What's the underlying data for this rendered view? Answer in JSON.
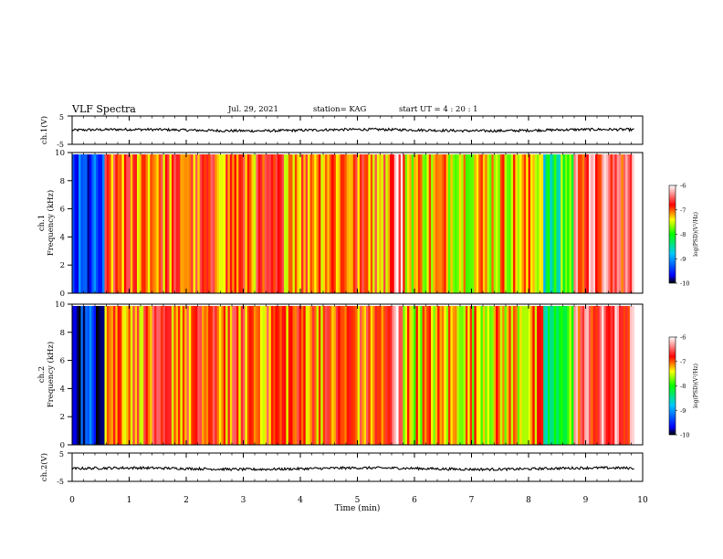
{
  "header": {
    "title": "VLF Spectra",
    "date": "Jul. 29, 2021",
    "station": "station= KAG",
    "start": "start UT =  4 : 20 : 1"
  },
  "chart_data": [
    {
      "id": "waveform_ch1",
      "type": "line",
      "ylabel": "ch.1(V)",
      "yticks": [
        "5",
        "-5"
      ],
      "ylim": [
        -5,
        5
      ],
      "xlim": [
        0,
        10
      ],
      "trace_level_v": 0
    },
    {
      "id": "spectrogram_ch1",
      "type": "heatmap",
      "ylabel": "ch.1\nFrequency (kHz)",
      "ytick_labels": [
        "0",
        "2",
        "4",
        "6",
        "8",
        "10"
      ],
      "ylim": [
        0,
        10
      ],
      "xlim": [
        0,
        10
      ],
      "colorbar": {
        "label": "log(PSD)(V²/Hz)",
        "tick_labels": [
          "-6",
          "-7",
          "-8",
          "-9",
          "-10"
        ],
        "range": [
          -10,
          -6
        ]
      },
      "segments_min": [
        {
          "t0": 0.0,
          "t1": 0.55,
          "psd_log": -9.5
        },
        {
          "t0": 0.55,
          "t1": 5.6,
          "psd_log": -7.0
        },
        {
          "t0": 5.6,
          "t1": 5.8,
          "psd_log": -6.3
        },
        {
          "t0": 5.8,
          "t1": 8.25,
          "psd_log": -7.3
        },
        {
          "t0": 8.25,
          "t1": 8.55,
          "psd_log": -8.4
        },
        {
          "t0": 8.55,
          "t1": 8.8,
          "psd_log": -7.8
        },
        {
          "t0": 8.8,
          "t1": 9.85,
          "psd_log": -6.6
        }
      ]
    },
    {
      "id": "spectrogram_ch2",
      "type": "heatmap",
      "ylabel": "ch.2\nFrequency (kHz)",
      "ytick_labels": [
        "0",
        "2",
        "4",
        "6",
        "8",
        "10"
      ],
      "ylim": [
        0,
        10
      ],
      "xlim": [
        0,
        10
      ],
      "colorbar": {
        "label": "log(PSD)(V²/Hz)",
        "tick_labels": [
          "-6",
          "-7",
          "-8",
          "-9",
          "-10"
        ],
        "range": [
          -10,
          -6
        ]
      },
      "segments_min": [
        {
          "t0": 0.0,
          "t1": 0.55,
          "psd_log": -9.5
        },
        {
          "t0": 0.55,
          "t1": 5.6,
          "psd_log": -7.0
        },
        {
          "t0": 5.6,
          "t1": 5.8,
          "psd_log": -6.3
        },
        {
          "t0": 5.8,
          "t1": 8.25,
          "psd_log": -7.3
        },
        {
          "t0": 8.25,
          "t1": 8.55,
          "psd_log": -8.4
        },
        {
          "t0": 8.55,
          "t1": 8.8,
          "psd_log": -7.8
        },
        {
          "t0": 8.8,
          "t1": 9.85,
          "psd_log": -6.6
        }
      ]
    },
    {
      "id": "waveform_ch2",
      "type": "line",
      "ylabel": "ch.2(V)",
      "yticks": [
        "5",
        "-5"
      ],
      "ylim": [
        -5,
        5
      ],
      "xlim": [
        0,
        10
      ],
      "trace_level_v": -0.5
    }
  ],
  "xaxis": {
    "label": "Time (min)",
    "tick_labels": [
      "0",
      "1",
      "2",
      "3",
      "4",
      "5",
      "6",
      "7",
      "8",
      "9",
      "10"
    ],
    "range": [
      0,
      10
    ]
  },
  "colors": {
    "waveform": "#000000",
    "background": "#ffffff"
  }
}
